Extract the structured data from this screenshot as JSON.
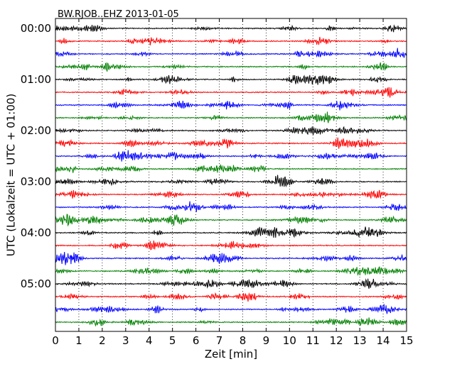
{
  "chart_data": {
    "type": "line",
    "title": "BW.RJOB..EHZ 2013-01-05",
    "xlabel": "Zeit  [min]",
    "ylabel": "UTC (Lokalzeit = UTC + 01:00)",
    "xlim": [
      0,
      15
    ],
    "x_ticks": [
      0,
      1,
      2,
      3,
      4,
      5,
      6,
      7,
      8,
      9,
      10,
      11,
      12,
      13,
      14,
      15
    ],
    "y_ticks": [
      "00:00",
      "01:00",
      "02:00",
      "03:00",
      "04:00",
      "05:00"
    ],
    "grid": "vertical dotted",
    "colors": [
      "#000000",
      "#ff0000",
      "#0000ff",
      "#008000"
    ],
    "trace_count": 24,
    "traces": [
      {
        "start": "00:00",
        "color": "#000000"
      },
      {
        "start": "00:15",
        "color": "#ff0000"
      },
      {
        "start": "00:30",
        "color": "#0000ff"
      },
      {
        "start": "00:45",
        "color": "#008000"
      },
      {
        "start": "01:00",
        "color": "#000000"
      },
      {
        "start": "01:15",
        "color": "#ff0000"
      },
      {
        "start": "01:30",
        "color": "#0000ff"
      },
      {
        "start": "01:45",
        "color": "#008000"
      },
      {
        "start": "02:00",
        "color": "#000000"
      },
      {
        "start": "02:15",
        "color": "#ff0000"
      },
      {
        "start": "02:30",
        "color": "#0000ff"
      },
      {
        "start": "02:45",
        "color": "#008000"
      },
      {
        "start": "03:00",
        "color": "#000000"
      },
      {
        "start": "03:15",
        "color": "#ff0000"
      },
      {
        "start": "03:30",
        "color": "#0000ff"
      },
      {
        "start": "03:45",
        "color": "#008000"
      },
      {
        "start": "04:00",
        "color": "#000000"
      },
      {
        "start": "04:15",
        "color": "#ff0000"
      },
      {
        "start": "04:30",
        "color": "#0000ff"
      },
      {
        "start": "04:45",
        "color": "#008000"
      },
      {
        "start": "05:00",
        "color": "#000000"
      },
      {
        "start": "05:15",
        "color": "#ff0000"
      },
      {
        "start": "05:30",
        "color": "#0000ff"
      },
      {
        "start": "05:45",
        "color": "#008000"
      }
    ]
  }
}
